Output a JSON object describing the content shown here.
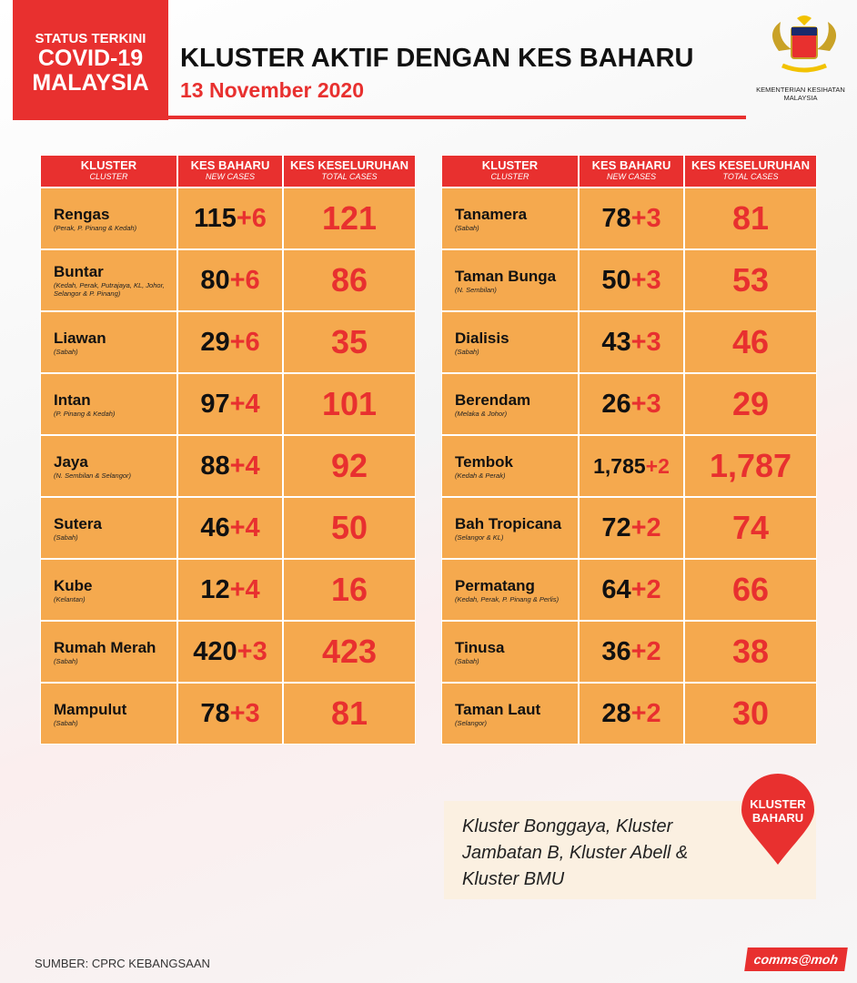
{
  "header": {
    "badge": [
      "STATUS TERKINI",
      "COVID-19",
      "MALAYSIA"
    ],
    "title": "KLUSTER AKTIF DENGAN KES BAHARU",
    "date": "13 November 2020",
    "ministry": [
      "KEMENTERIAN KESIHATAN",
      "MALAYSIA"
    ]
  },
  "columns": [
    {
      "title": "KLUSTER",
      "subtitle": "CLUSTER"
    },
    {
      "title": "KES BAHARU",
      "subtitle": "NEW CASES"
    },
    {
      "title": "KES KESELURUHAN",
      "subtitle": "TOTAL CASES"
    }
  ],
  "tables": [
    {
      "rows": [
        {
          "name": "Rengas",
          "location": "(Perak, P. Pinang & Kedah)",
          "existing": "115",
          "new": "+6",
          "total": "121"
        },
        {
          "name": "Buntar",
          "location": "(Kedah, Perak, Putrajaya, KL, Johor, Selangor & P. Pinang)",
          "existing": "80",
          "new": "+6",
          "total": "86"
        },
        {
          "name": "Liawan",
          "location": "(Sabah)",
          "existing": "29",
          "new": "+6",
          "total": "35"
        },
        {
          "name": "Intan",
          "location": "(P. Pinang & Kedah)",
          "existing": "97",
          "new": "+4",
          "total": "101"
        },
        {
          "name": "Jaya",
          "location": "(N. Sembilan & Selangor)",
          "existing": "88",
          "new": "+4",
          "total": "92"
        },
        {
          "name": "Sutera",
          "location": "(Sabah)",
          "existing": "46",
          "new": "+4",
          "total": "50"
        },
        {
          "name": "Kube",
          "location": "(Kelantan)",
          "existing": "12",
          "new": "+4",
          "total": "16"
        },
        {
          "name": "Rumah Merah",
          "location": "(Sabah)",
          "existing": "420",
          "new": "+3",
          "total": "423"
        },
        {
          "name": "Mampulut",
          "location": "(Sabah)",
          "existing": "78",
          "new": "+3",
          "total": "81"
        }
      ]
    },
    {
      "rows": [
        {
          "name": "Tanamera",
          "location": "(Sabah)",
          "existing": "78",
          "new": "+3",
          "total": "81"
        },
        {
          "name": "Taman Bunga",
          "location": "(N. Sembilan)",
          "existing": "50",
          "new": "+3",
          "total": "53"
        },
        {
          "name": "Dialisis",
          "location": "(Sabah)",
          "existing": "43",
          "new": "+3",
          "total": "46"
        },
        {
          "name": "Berendam",
          "location": "(Melaka & Johor)",
          "existing": "26",
          "new": "+3",
          "total": "29"
        },
        {
          "name": "Tembok",
          "location": "(Kedah & Perak)",
          "existing": "1,785",
          "new": "+2",
          "total": "1,787"
        },
        {
          "name": "Bah Tropicana",
          "location": "(Selangor & KL)",
          "existing": "72",
          "new": "+2",
          "total": "74"
        },
        {
          "name": "Permatang",
          "location": "(Kedah, Perak, P. Pinang & Perlis)",
          "existing": "64",
          "new": "+2",
          "total": "66"
        },
        {
          "name": "Tinusa",
          "location": "(Sabah)",
          "existing": "36",
          "new": "+2",
          "total": "38"
        },
        {
          "name": "Taman Laut",
          "location": "(Selangor)",
          "existing": "28",
          "new": "+2",
          "total": "30"
        }
      ]
    }
  ],
  "new_clusters": {
    "label": [
      "KLUSTER",
      "BAHARU"
    ],
    "text": "Kluster Bonggaya, Kluster Jambatan B, Kluster Abell & Kluster BMU"
  },
  "footer": {
    "source": "SUMBER: CPRC KEBANGSAAN",
    "brand": "comms@moh"
  }
}
